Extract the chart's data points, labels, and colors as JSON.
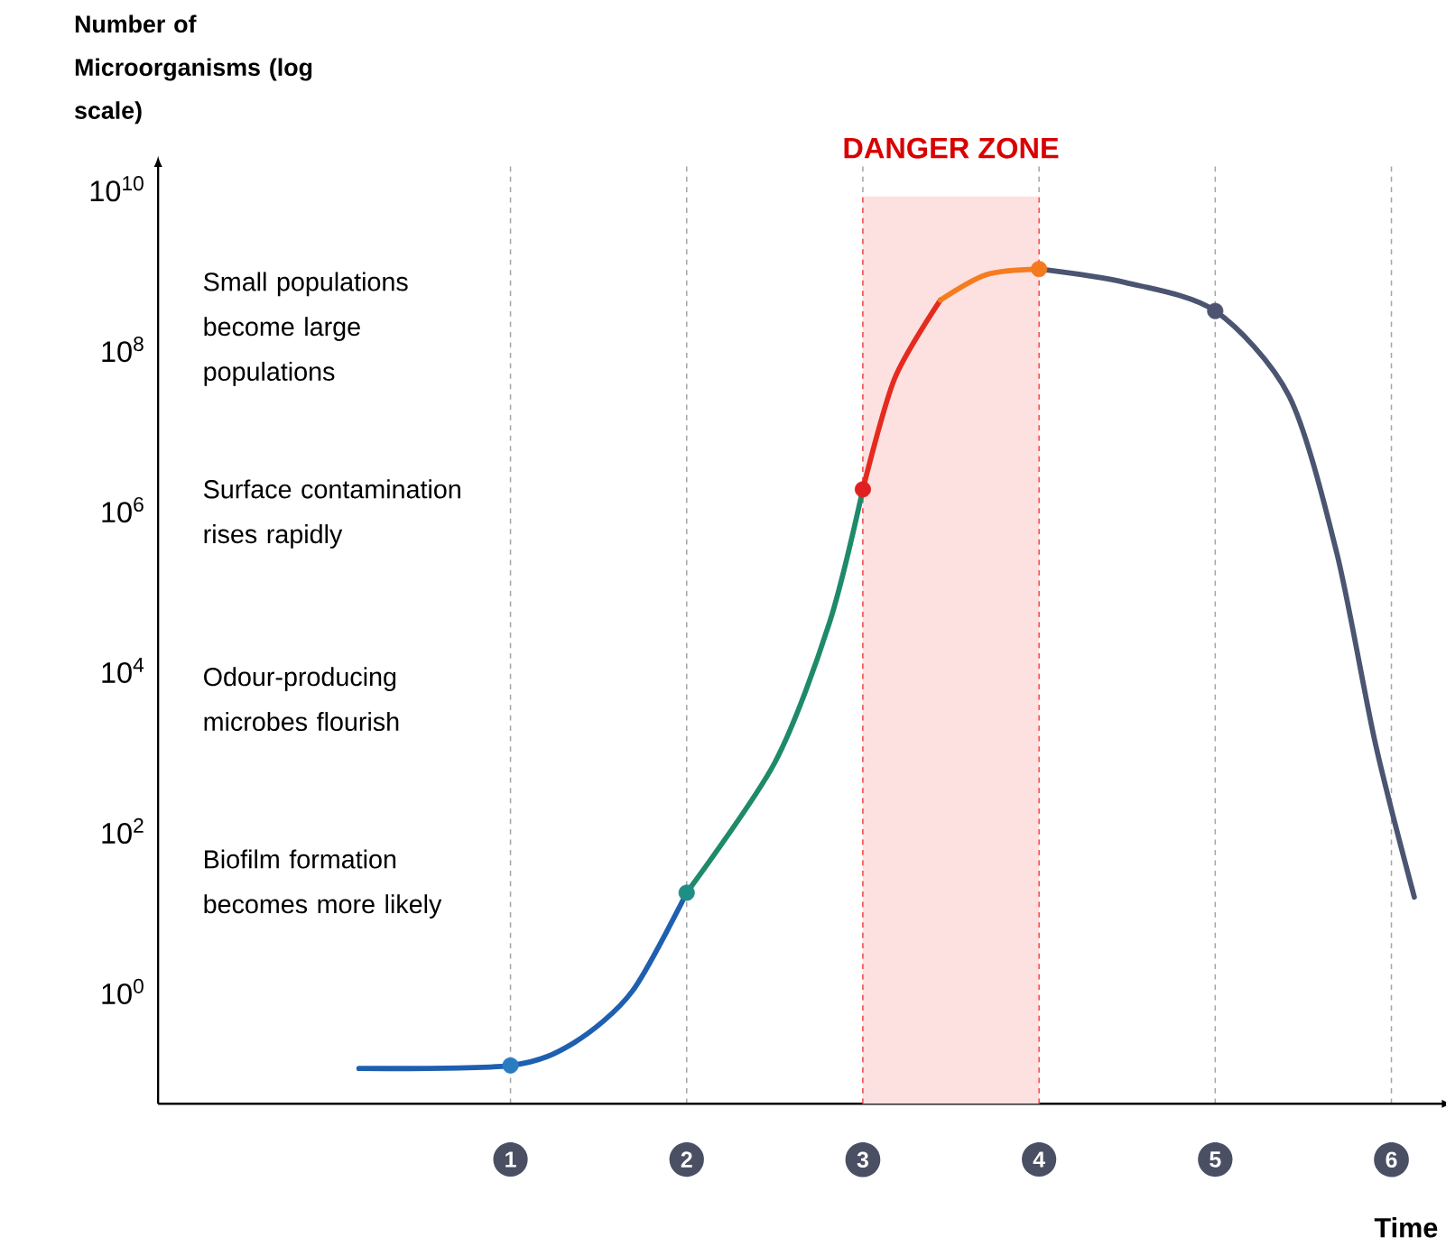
{
  "chart_data": {
    "type": "line",
    "ylabel": "Number of Microorganisms (log scale)",
    "xlabel": "Time",
    "log": "y",
    "grid": "x",
    "line_style": "solid",
    "marker": "none",
    "xlim": [
      -1,
      6.3
    ],
    "xticks": [
      1,
      2,
      3,
      4,
      5,
      6
    ],
    "ylim": [
      0.04,
      20000000000
    ],
    "yticks": [
      {
        "value": 1,
        "label": "10$^{0}$"
      },
      {
        "value": 100,
        "label": "10$^{2}$"
      },
      {
        "value": 10000,
        "label": "10$^{4}$"
      },
      {
        "value": 1000000,
        "label": "10$^{6}$"
      },
      {
        "value": 100000000,
        "label": "10$^{8}$"
      },
      {
        "value": 10000000000,
        "label": "10$^{10}$"
      }
    ],
    "series": [
      {
        "color": "#1f5fb0",
        "x": [
          0.14,
          1,
          1.36,
          1.69,
          2
        ],
        "values": [
          0.11,
          0.12,
          0.23,
          1.0,
          17
        ]
      },
      {
        "color": "#1e8a6a",
        "x": [
          2,
          2.5,
          2.81,
          3
        ],
        "values": [
          17,
          710,
          39000,
          1800000
        ]
      },
      {
        "color": "#e52a1e",
        "x": [
          3,
          3.18,
          3.44
        ],
        "values": [
          1800000,
          43000000,
          410000000
        ]
      },
      {
        "color": "#f57c1f",
        "x": [
          3.44,
          3.7,
          4
        ],
        "values": [
          410000000,
          850000000,
          1000000000
        ]
      },
      {
        "color": "#4b5470",
        "x": [
          4,
          4.49,
          5,
          5.42,
          5.69,
          5.91,
          6.13
        ],
        "values": [
          1000000000,
          680000000,
          300000000,
          26000000,
          290000,
          1200,
          15
        ]
      },
      {
        "type": "scatter",
        "marker": "circle",
        "colors": [
          "#2a7cc0",
          "#1f8f86",
          "#e02020",
          "#f47a20",
          "#4e5470"
        ],
        "x": [
          1,
          2,
          3,
          4,
          5
        ],
        "values": [
          0.12,
          17,
          1800000,
          1000000000,
          300000000
        ]
      }
    ],
    "bands": [
      {
        "axis": "x",
        "from": 3,
        "to": 4,
        "label": "DANGER ZONE",
        "color": "#fde0e0"
      }
    ],
    "annotations": [
      "Small populations become large populations",
      "Surface contamination rises rapidly",
      "Odour-producing microbes flourish",
      "Biofilm formation becomes more likely"
    ]
  }
}
